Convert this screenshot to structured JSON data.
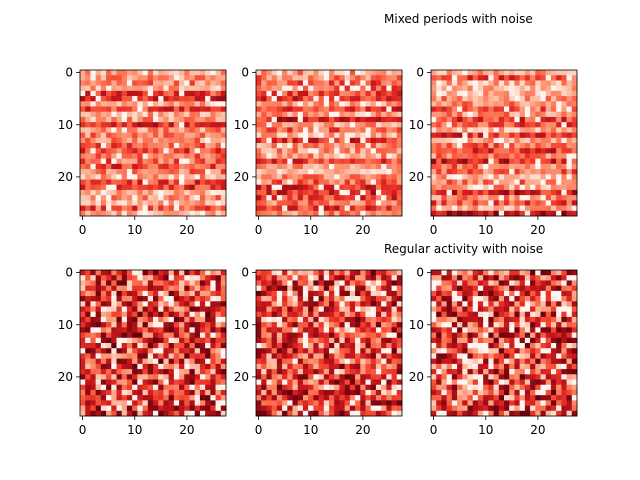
{
  "figure": {
    "background": "#ffffff",
    "colormap": "Reds",
    "colormap_stops": [
      "#fff5f0",
      "#fee0d2",
      "#fcbba1",
      "#fc9272",
      "#fb6a4a",
      "#ef3b2c",
      "#cb181d",
      "#a50f15",
      "#67000d"
    ]
  },
  "chart_data": [
    {
      "type": "heatmap",
      "title": "",
      "grid_size": [
        28,
        28
      ],
      "xticks": [
        "0",
        "10",
        "20"
      ],
      "yticks": [
        "0",
        "10",
        "20"
      ],
      "pattern": "horizontal-banded",
      "seed": 11,
      "grid": false
    },
    {
      "type": "heatmap",
      "title": "",
      "grid_size": [
        28,
        28
      ],
      "xticks": [
        "0",
        "10",
        "20"
      ],
      "yticks": [
        "0",
        "10",
        "20"
      ],
      "pattern": "horizontal-banded",
      "seed": 23,
      "grid": false
    },
    {
      "type": "heatmap",
      "title": "Mixed periods with noise",
      "grid_size": [
        28,
        28
      ],
      "xticks": [
        "0",
        "10",
        "20"
      ],
      "yticks": [
        "0",
        "10",
        "20"
      ],
      "pattern": "horizontal-banded",
      "seed": 37,
      "grid": false
    },
    {
      "type": "heatmap",
      "title": "",
      "grid_size": [
        28,
        28
      ],
      "xticks": [
        "0",
        "10",
        "20"
      ],
      "yticks": [
        "0",
        "10",
        "20"
      ],
      "pattern": "random-dark",
      "seed": 41,
      "grid": false
    },
    {
      "type": "heatmap",
      "title": "",
      "grid_size": [
        28,
        28
      ],
      "xticks": [
        "0",
        "10",
        "20"
      ],
      "yticks": [
        "0",
        "10",
        "20"
      ],
      "pattern": "random-dark",
      "seed": 53,
      "grid": false
    },
    {
      "type": "heatmap",
      "title": "Regular activity with noise",
      "grid_size": [
        28,
        28
      ],
      "xticks": [
        "0",
        "10",
        "20"
      ],
      "yticks": [
        "0",
        "10",
        "20"
      ],
      "pattern": "random-dark",
      "seed": 67,
      "grid": false
    }
  ]
}
